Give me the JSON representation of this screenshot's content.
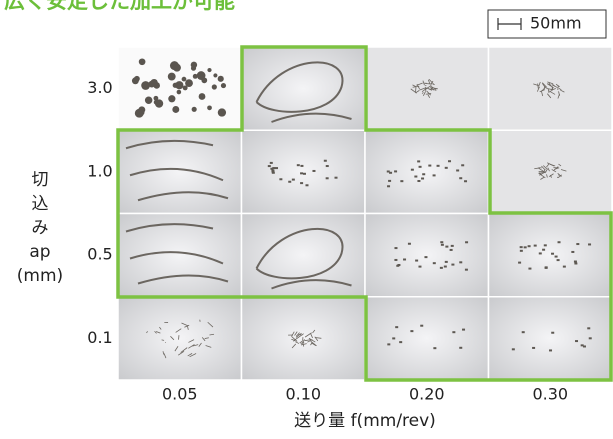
{
  "title": "広く安定した加工が可能",
  "scale_bar": "50mm",
  "y_axis": {
    "label_lines": [
      "切",
      "込",
      "み",
      "ap",
      "(mm)"
    ],
    "labels": [
      "3.0",
      "1.0",
      "0.5",
      "0.1"
    ]
  },
  "x_axis": {
    "label": "送り量 f(mm/rev)",
    "labels": [
      "0.05",
      "0.10",
      "0.20",
      "0.30"
    ]
  }
}
